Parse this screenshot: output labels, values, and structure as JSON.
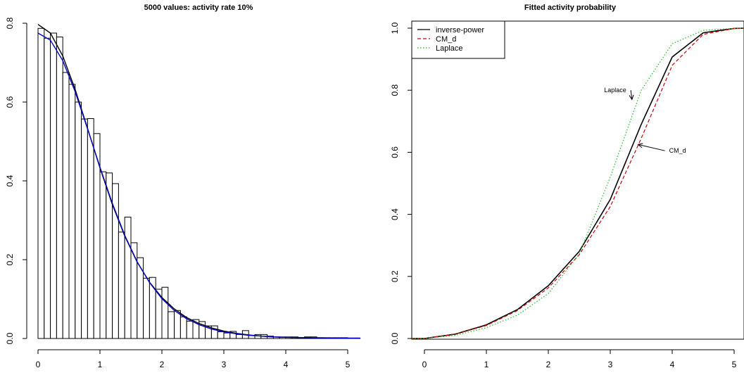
{
  "chart_data": [
    {
      "type": "bar",
      "title": "5000 values: activity rate 10%",
      "xlabel": "",
      "ylabel": "",
      "xlim": [
        0,
        5.2
      ],
      "ylim": [
        0,
        0.8
      ],
      "xticks": [
        "0",
        "1",
        "2",
        "3",
        "4",
        "5"
      ],
      "yticks": [
        "0.0",
        "0.2",
        "0.4",
        "0.6",
        "0.8"
      ],
      "bin_width": 0.1,
      "bin_start": 0,
      "values": [
        0.787,
        0.762,
        0.775,
        0.765,
        0.675,
        0.645,
        0.6,
        0.557,
        0.558,
        0.52,
        0.423,
        0.42,
        0.393,
        0.27,
        0.308,
        0.243,
        0.205,
        0.153,
        0.155,
        0.125,
        0.13,
        0.068,
        0.071,
        0.055,
        0.044,
        0.048,
        0.043,
        0.032,
        0.032,
        0.017,
        0.014,
        0.018,
        0.01,
        0.02,
        0.008,
        0.01,
        0.01,
        0.006,
        0.004,
        0.004,
        0.004,
        0.004,
        0.002,
        0.004,
        0.004,
        0.002,
        0.002,
        0.002,
        0.002,
        0.002,
        0.001,
        0.001
      ],
      "curves": [
        {
          "color": "#000000",
          "x": [
            0,
            0.2,
            0.4,
            0.6,
            0.8,
            1.0,
            1.2,
            1.4,
            1.6,
            1.8,
            2.0,
            2.2,
            2.4,
            2.6,
            2.8,
            3.0,
            3.2,
            3.4,
            3.6,
            3.8,
            4.0,
            4.5,
            5.0,
            5.2
          ],
          "y": [
            0.797,
            0.775,
            0.717,
            0.632,
            0.533,
            0.433,
            0.34,
            0.26,
            0.194,
            0.143,
            0.104,
            0.075,
            0.053,
            0.038,
            0.027,
            0.019,
            0.013,
            0.009,
            0.006,
            0.004,
            0.003,
            0.001,
            0.0005,
            0.0003
          ]
        },
        {
          "color": "#0000cc",
          "x": [
            0,
            0.2,
            0.4,
            0.6,
            0.8,
            1.0,
            1.2,
            1.4,
            1.6,
            1.8,
            2.0,
            2.2,
            2.4,
            2.6,
            2.8,
            3.0,
            3.2,
            3.4,
            3.6,
            3.8,
            4.0,
            4.5,
            5.0,
            5.2
          ],
          "y": [
            0.775,
            0.757,
            0.705,
            0.626,
            0.532,
            0.435,
            0.343,
            0.262,
            0.195,
            0.142,
            0.101,
            0.071,
            0.05,
            0.035,
            0.024,
            0.017,
            0.012,
            0.008,
            0.006,
            0.004,
            0.003,
            0.002,
            0.001,
            0.001
          ]
        }
      ]
    },
    {
      "type": "line",
      "title": "Fitted activity probability",
      "xlabel": "",
      "ylabel": "",
      "xlim": [
        -0.2,
        5.2
      ],
      "ylim": [
        0,
        1.0
      ],
      "xticks": [
        "0",
        "1",
        "2",
        "3",
        "4",
        "5"
      ],
      "yticks": [
        "0.0",
        "0.2",
        "0.4",
        "0.6",
        "0.8",
        "1.0"
      ],
      "legend_position": "top-left",
      "series": [
        {
          "name": "inverse-power",
          "color": "#000000",
          "dash": "solid",
          "x": [
            -0.2,
            0,
            0.5,
            1.0,
            1.5,
            2.0,
            2.5,
            3.0,
            3.5,
            4.0,
            4.5,
            5.0,
            5.2
          ],
          "y": [
            0.0,
            0.0,
            0.014,
            0.044,
            0.093,
            0.17,
            0.281,
            0.448,
            0.69,
            0.907,
            0.985,
            0.999,
            1.0
          ]
        },
        {
          "name": "CM_d",
          "color": "#cc0000",
          "dash": "dashed",
          "x": [
            -0.2,
            0,
            0.5,
            1.0,
            1.5,
            2.0,
            2.5,
            3.0,
            3.5,
            4.0,
            4.5,
            5.0,
            5.2
          ],
          "y": [
            0.0,
            0.0,
            0.014,
            0.042,
            0.09,
            0.163,
            0.27,
            0.425,
            0.645,
            0.88,
            0.98,
            0.999,
            1.0
          ]
        },
        {
          "name": "Laplace",
          "color": "#22bb22",
          "dash": "dotted",
          "x": [
            -0.2,
            0,
            0.5,
            1.0,
            1.5,
            2.0,
            2.5,
            3.0,
            3.5,
            4.0,
            4.5,
            5.0,
            5.2
          ],
          "y": [
            0.0,
            0.0,
            0.01,
            0.035,
            0.075,
            0.145,
            0.272,
            0.52,
            0.8,
            0.95,
            0.993,
            0.999,
            1.0
          ]
        }
      ],
      "annotations": [
        {
          "text": "Laplace",
          "arrow_to": [
            3.35,
            0.77
          ],
          "text_at": [
            2.9,
            0.8
          ]
        },
        {
          "text": "CM_d",
          "arrow_to": [
            3.45,
            0.625
          ],
          "text_at": [
            3.95,
            0.605
          ]
        }
      ]
    }
  ]
}
